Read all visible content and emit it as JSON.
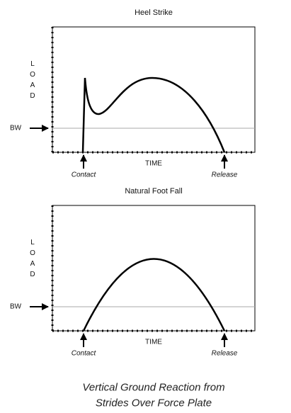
{
  "panels": [
    {
      "title": "Heel Strike",
      "y_label": "LOAD",
      "reference_label": "BW",
      "x_label": "TIME",
      "start_label": "Contact",
      "end_label": "Release"
    },
    {
      "title": "Natural Foot Fall",
      "y_label": "LOAD",
      "reference_label": "BW",
      "x_label": "TIME",
      "start_label": "Contact",
      "end_label": "Release"
    }
  ],
  "caption": [
    "Vertical Ground Reaction from",
    "Strides Over Force Plate"
  ]
}
